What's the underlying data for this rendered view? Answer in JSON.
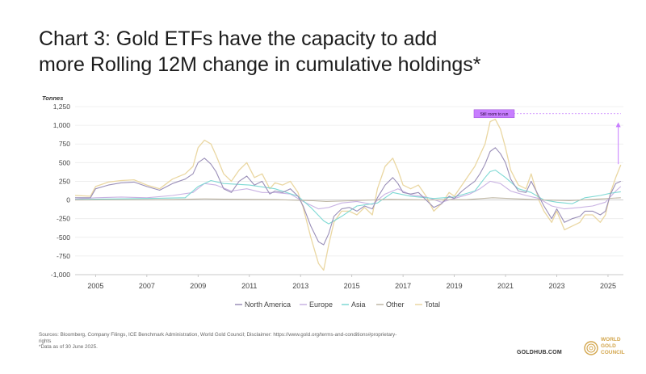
{
  "title_lines": [
    "Chart 3: Gold ETFs have the capacity to add",
    "more Rolling 12M change in cumulative holdings*"
  ],
  "sources": [
    "Sources: Bloomberg, Company Filings, ICE Benchmark Administration, World Gold Council; Disclaimer: https://www.gold.org/terms-and-conditions#proprietary-",
    "rights",
    "*Data as of 30 June 2025."
  ],
  "site": "GOLDHUB.COM",
  "logo_text": [
    "WORLD",
    "GOLD",
    "COUNCIL"
  ],
  "colors": {
    "north_america": "#9a8fb8",
    "europe": "#c9b3e3",
    "asia": "#7fd9d4",
    "other": "#bfb7a5",
    "total": "#ead7a2",
    "annotation": "#c77dff",
    "logo": "#d3a64d"
  },
  "chart_data": {
    "type": "line",
    "ylabel": "Tonnes",
    "ylim": [
      -1000,
      1250
    ],
    "yticks": [
      -1000,
      -750,
      -500,
      -250,
      0,
      250,
      500,
      750,
      1000,
      1250
    ],
    "ytick_labels": [
      "-1,000",
      "-750",
      "-500",
      "-250",
      "0",
      "250",
      "500",
      "750",
      "1,000",
      "1,250"
    ],
    "xlim": [
      2004.2,
      2025.6
    ],
    "xticks": [
      2005,
      2007,
      2009,
      2011,
      2013,
      2015,
      2017,
      2019,
      2021,
      2023,
      2025
    ],
    "xtick_labels": [
      "2005",
      "2007",
      "2009",
      "2011",
      "2013",
      "2015",
      "2017",
      "2019",
      "2021",
      "2023",
      "2025"
    ],
    "grid": true,
    "legend_position": "bottom",
    "annotation": {
      "text": "Still room to run",
      "x": 2019.8,
      "y": 1155,
      "line_y": 1155,
      "line_x_end": 2025.5,
      "arrow_x": 2025.4,
      "arrow_from": 480,
      "arrow_to": 1040
    },
    "series": [
      {
        "name": "Total",
        "x": [
          2004.2,
          2004.8,
          2005.0,
          2005.5,
          2006.0,
          2006.5,
          2007.0,
          2007.5,
          2008.0,
          2008.5,
          2008.8,
          2009.0,
          2009.25,
          2009.5,
          2009.7,
          2010.0,
          2010.3,
          2010.6,
          2010.9,
          2011.2,
          2011.5,
          2011.8,
          2012.0,
          2012.3,
          2012.6,
          2012.9,
          2013.1,
          2013.4,
          2013.7,
          2013.9,
          2014.1,
          2014.3,
          2014.6,
          2014.9,
          2015.2,
          2015.5,
          2015.8,
          2016.0,
          2016.3,
          2016.6,
          2016.8,
          2017.0,
          2017.3,
          2017.6,
          2017.9,
          2018.2,
          2018.5,
          2018.8,
          2019.0,
          2019.3,
          2019.6,
          2019.8,
          2020.0,
          2020.2,
          2020.4,
          2020.6,
          2020.8,
          2021.0,
          2021.2,
          2021.5,
          2021.8,
          2022.0,
          2022.3,
          2022.5,
          2022.8,
          2023.0,
          2023.3,
          2023.6,
          2023.9,
          2024.1,
          2024.4,
          2024.7,
          2024.9,
          2025.1,
          2025.3,
          2025.5
        ],
        "values": [
          60,
          50,
          180,
          240,
          260,
          270,
          200,
          150,
          280,
          350,
          450,
          700,
          800,
          750,
          600,
          350,
          250,
          400,
          500,
          300,
          350,
          150,
          230,
          200,
          250,
          100,
          -100,
          -500,
          -850,
          -940,
          -600,
          -300,
          -150,
          -150,
          -200,
          -100,
          -200,
          150,
          450,
          560,
          400,
          200,
          150,
          200,
          50,
          -150,
          -50,
          100,
          50,
          200,
          350,
          450,
          600,
          750,
          1050,
          1080,
          950,
          700,
          400,
          200,
          150,
          350,
          0,
          -150,
          -300,
          -150,
          -400,
          -350,
          -300,
          -200,
          -200,
          -300,
          -200,
          100,
          300,
          470
        ]
      },
      {
        "name": "North America",
        "x": [
          2004.2,
          2004.8,
          2005.0,
          2005.5,
          2006.0,
          2006.5,
          2007.0,
          2007.5,
          2008.0,
          2008.5,
          2008.8,
          2009.0,
          2009.25,
          2009.5,
          2009.7,
          2010.0,
          2010.3,
          2010.6,
          2010.9,
          2011.2,
          2011.5,
          2011.8,
          2012.0,
          2012.3,
          2012.6,
          2012.9,
          2013.1,
          2013.4,
          2013.7,
          2013.9,
          2014.1,
          2014.3,
          2014.6,
          2014.9,
          2015.2,
          2015.5,
          2015.8,
          2016.0,
          2016.3,
          2016.6,
          2016.8,
          2017.0,
          2017.3,
          2017.6,
          2017.9,
          2018.2,
          2018.5,
          2018.8,
          2019.0,
          2019.3,
          2019.6,
          2019.8,
          2020.0,
          2020.2,
          2020.4,
          2020.6,
          2020.8,
          2021.0,
          2021.2,
          2021.5,
          2021.8,
          2022.0,
          2022.3,
          2022.5,
          2022.8,
          2023.0,
          2023.3,
          2023.6,
          2023.9,
          2024.1,
          2024.4,
          2024.7,
          2024.9,
          2025.1,
          2025.3,
          2025.5
        ],
        "values": [
          30,
          30,
          150,
          200,
          230,
          240,
          180,
          130,
          220,
          280,
          350,
          500,
          560,
          480,
          380,
          150,
          100,
          250,
          320,
          200,
          250,
          80,
          120,
          100,
          150,
          50,
          -80,
          -350,
          -560,
          -600,
          -450,
          -220,
          -120,
          -100,
          -150,
          -80,
          -120,
          30,
          200,
          300,
          220,
          100,
          80,
          100,
          0,
          -100,
          -50,
          50,
          20,
          120,
          200,
          250,
          350,
          480,
          650,
          700,
          620,
          500,
          280,
          120,
          100,
          250,
          50,
          -80,
          -250,
          -120,
          -300,
          -250,
          -220,
          -150,
          -150,
          -200,
          -150,
          80,
          220,
          250
        ]
      },
      {
        "name": "Europe",
        "x": [
          2004.2,
          2005.0,
          2006.0,
          2007.0,
          2008.0,
          2008.8,
          2009.25,
          2009.7,
          2010.3,
          2010.9,
          2011.5,
          2012.0,
          2012.6,
          2013.1,
          2013.7,
          2014.1,
          2014.6,
          2015.2,
          2015.8,
          2016.3,
          2016.8,
          2017.3,
          2017.9,
          2018.5,
          2019.0,
          2019.6,
          2020.0,
          2020.4,
          2020.8,
          2021.2,
          2021.8,
          2022.3,
          2022.8,
          2023.3,
          2023.9,
          2024.4,
          2024.9,
          2025.3,
          2025.5
        ],
        "values": [
          10,
          30,
          40,
          30,
          60,
          100,
          220,
          200,
          120,
          150,
          100,
          100,
          80,
          -20,
          -120,
          -100,
          -40,
          -20,
          -60,
          80,
          150,
          70,
          40,
          -30,
          20,
          80,
          150,
          250,
          220,
          120,
          60,
          20,
          -80,
          -120,
          -100,
          -80,
          -30,
          120,
          180
        ]
      },
      {
        "name": "Asia",
        "x": [
          2004.2,
          2005.0,
          2007.0,
          2008.5,
          2009.0,
          2009.5,
          2010.0,
          2011.0,
          2012.0,
          2012.9,
          2013.4,
          2013.9,
          2014.1,
          2014.6,
          2015.2,
          2016.0,
          2016.6,
          2017.3,
          2018.2,
          2019.0,
          2019.8,
          2020.2,
          2020.4,
          2020.6,
          2020.8,
          2021.0,
          2021.5,
          2022.0,
          2022.5,
          2023.0,
          2023.6,
          2024.1,
          2024.7,
          2025.1,
          2025.5
        ],
        "values": [
          5,
          10,
          20,
          30,
          180,
          260,
          220,
          200,
          150,
          50,
          -100,
          -280,
          -320,
          -220,
          -80,
          -40,
          100,
          50,
          20,
          40,
          120,
          300,
          380,
          400,
          350,
          300,
          150,
          100,
          0,
          -30,
          -50,
          30,
          60,
          90,
          110
        ]
      },
      {
        "name": "Other",
        "x": [
          2004.2,
          2006.0,
          2008.0,
          2009.25,
          2010.0,
          2012.0,
          2013.5,
          2014.0,
          2015.0,
          2016.5,
          2018.0,
          2019.5,
          2020.5,
          2021.5,
          2022.5,
          2023.5,
          2024.5,
          2025.5
        ],
        "values": [
          0,
          2,
          5,
          15,
          10,
          5,
          -10,
          -20,
          -10,
          8,
          0,
          5,
          30,
          15,
          0,
          -10,
          10,
          30
        ]
      }
    ]
  }
}
